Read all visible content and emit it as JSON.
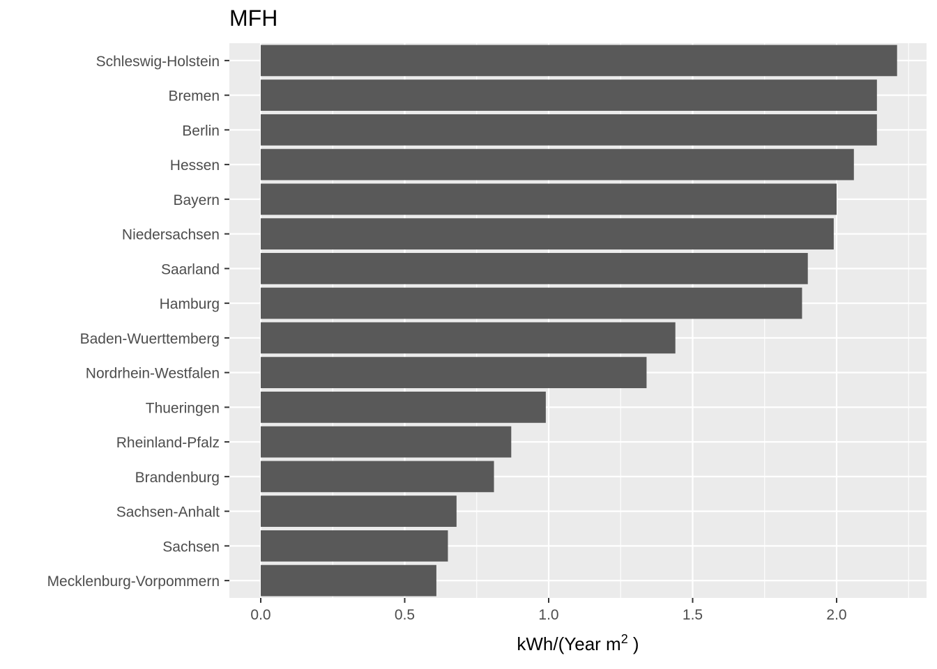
{
  "chart_data": {
    "type": "bar",
    "orientation": "horizontal",
    "title": "MFH",
    "xlabel": {
      "text": "kWh/(Year m",
      "superscript": "2",
      "suffix": " )"
    },
    "ylabel": "",
    "xlim": [
      0,
      2.3
    ],
    "x_ticks": [
      0.0,
      0.5,
      1.0,
      1.5,
      2.0
    ],
    "x_tick_labels": [
      "0.0",
      "0.5",
      "1.0",
      "1.5",
      "2.0"
    ],
    "grid": true,
    "bar_color": "#595959",
    "panel_color": "#ebebeb",
    "grid_color": "#ffffff",
    "categories": [
      "Schleswig-Holstein",
      "Bremen",
      "Berlin",
      "Hessen",
      "Bayern",
      "Niedersachsen",
      "Saarland",
      "Hamburg",
      "Baden-Wuerttemberg",
      "Nordrhein-Westfalen",
      "Thueringen",
      "Rheinland-Pfalz",
      "Brandenburg",
      "Sachsen-Anhalt",
      "Sachsen",
      "Mecklenburg-Vorpommern"
    ],
    "values": [
      2.21,
      2.14,
      2.14,
      2.06,
      2.0,
      1.99,
      1.9,
      1.88,
      1.44,
      1.34,
      0.99,
      0.87,
      0.81,
      0.68,
      0.65,
      0.61
    ]
  }
}
